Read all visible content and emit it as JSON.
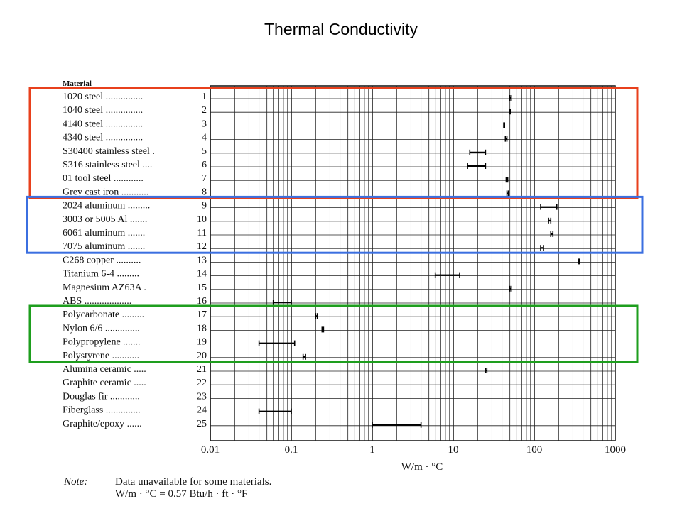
{
  "slide": {
    "title": "Thermal Conductivity"
  },
  "chart_data": {
    "type": "range",
    "header": "Material",
    "xlabel": "W/m · °C",
    "xscale": "log",
    "xlim": [
      0.01,
      1000
    ],
    "xticks": [
      {
        "value": 0.01,
        "label": "0.01"
      },
      {
        "value": 0.1,
        "label": "0.1"
      },
      {
        "value": 1,
        "label": "1"
      },
      {
        "value": 10,
        "label": "10"
      },
      {
        "value": 100,
        "label": "100"
      },
      {
        "value": 1000,
        "label": "1000"
      }
    ],
    "grid": true,
    "materials": [
      {
        "no": "1",
        "label": "1020 steel ...............",
        "min": 50,
        "max": 52
      },
      {
        "no": "2",
        "label": "1040 steel ...............",
        "min": 50,
        "max": 51
      },
      {
        "no": "3",
        "label": "4140 steel ...............",
        "min": 42,
        "max": 43
      },
      {
        "no": "4",
        "label": "4340 steel ...............",
        "min": 44,
        "max": 46
      },
      {
        "no": "5",
        "label": "S30400 stainless steel .",
        "min": 16,
        "max": 25
      },
      {
        "no": "6",
        "label": "S316 stainless steel ....",
        "min": 15,
        "max": 25
      },
      {
        "no": "7",
        "label": "01 tool steel ............",
        "min": 45,
        "max": 47
      },
      {
        "no": "8",
        "label": "Grey cast iron ...........",
        "min": 46,
        "max": 48
      },
      {
        "no": "9",
        "label": "2024 aluminum .........",
        "min": 120,
        "max": 190
      },
      {
        "no": "10",
        "label": "3003 or 5005 Al .......",
        "min": 150,
        "max": 160
      },
      {
        "no": "11",
        "label": "6061 aluminum .......",
        "min": 160,
        "max": 170
      },
      {
        "no": "12",
        "label": "7075 aluminum .......",
        "min": 120,
        "max": 130
      },
      {
        "no": "13",
        "label": "C268 copper ..........",
        "min": 350,
        "max": 360
      },
      {
        "no": "14",
        "label": "Titanium 6-4 .........",
        "min": 6,
        "max": 12
      },
      {
        "no": "15",
        "label": "Magnesium AZ63A .",
        "min": 50,
        "max": 52
      },
      {
        "no": "16",
        "label": "ABS ...................",
        "min": 0.06,
        "max": 0.1
      },
      {
        "no": "17",
        "label": "Polycarbonate .........",
        "min": 0.2,
        "max": 0.21
      },
      {
        "no": "18",
        "label": "Nylon 6/6 ..............",
        "min": 0.24,
        "max": 0.25
      },
      {
        "no": "19",
        "label": "Polypropylene .......",
        "min": 0.04,
        "max": 0.11
      },
      {
        "no": "20",
        "label": "Polystyrene ...........",
        "min": 0.14,
        "max": 0.15
      },
      {
        "no": "21",
        "label": "Alumina ceramic .....",
        "min": 25,
        "max": 26
      },
      {
        "no": "22",
        "label": "Graphite ceramic .....",
        "min": null,
        "max": null
      },
      {
        "no": "23",
        "label": "Douglas fir ............",
        "min": null,
        "max": null
      },
      {
        "no": "24",
        "label": "Fiberglass ..............",
        "min": 0.04,
        "max": 0.1
      },
      {
        "no": "25",
        "label": "Graphite/epoxy ......",
        "min": 1,
        "max": 4
      }
    ],
    "highlights": [
      {
        "name": "steels",
        "color": "#e8401c",
        "from_row": 1,
        "to_row": 8
      },
      {
        "name": "aluminums",
        "color": "#3b6fe0",
        "from_row": 9,
        "to_row": 12
      },
      {
        "name": "polymers",
        "color": "#1e9e1e",
        "from_row": 17,
        "to_row": 20
      }
    ]
  },
  "note": {
    "prefix": "Note:",
    "line1": "Data unavailable for some materials.",
    "line2": "W/m · °C = 0.57 Btu/h · ft · °F"
  }
}
